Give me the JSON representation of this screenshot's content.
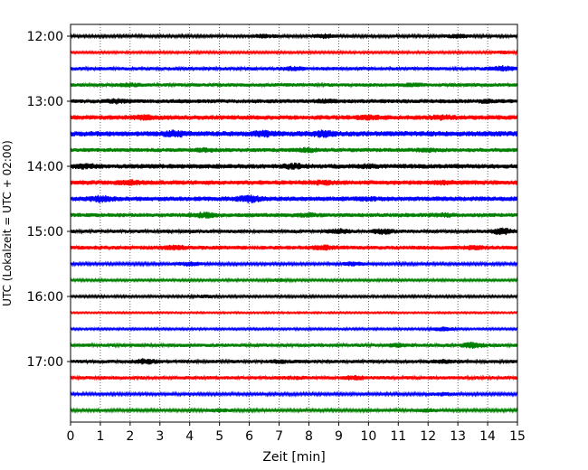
{
  "chart_data": {
    "type": "line",
    "subtype": "helicorder",
    "xlabel": "Zeit  [min]",
    "ylabel": "UTC (Lokalzeit = UTC + 02:00)",
    "xlim": [
      0,
      15
    ],
    "x_ticks": [
      "0",
      "1",
      "2",
      "3",
      "4",
      "5",
      "6",
      "7",
      "8",
      "9",
      "10",
      "11",
      "12",
      "13",
      "14",
      "15"
    ],
    "y_ticks": [
      "12:00",
      "13:00",
      "14:00",
      "15:00",
      "16:00",
      "17:00"
    ],
    "grid": "vertical dotted at each minute",
    "trace_interval_minutes": 15,
    "trace_colors": [
      "#000000",
      "#ff0000",
      "#0000ff",
      "#008000"
    ],
    "traces": [
      {
        "time": "12:00",
        "color": "#000000",
        "amplitude": 0.25,
        "events": [
          [
            6.5,
            0.45
          ],
          [
            8.5,
            0.5
          ],
          [
            13.0,
            0.45
          ]
        ]
      },
      {
        "time": "12:15",
        "color": "#ff0000",
        "amplitude": 0.2,
        "events": [
          [
            14.5,
            0.35
          ]
        ]
      },
      {
        "time": "12:30",
        "color": "#0000ff",
        "amplitude": 0.3,
        "events": [
          [
            7.5,
            0.5
          ],
          [
            14.5,
            0.6
          ]
        ]
      },
      {
        "time": "12:45",
        "color": "#008000",
        "amplitude": 0.3,
        "events": [
          [
            2.0,
            0.45
          ],
          [
            11.5,
            0.45
          ]
        ]
      },
      {
        "time": "13:00",
        "color": "#000000",
        "amplitude": 0.35,
        "events": [
          [
            1.5,
            0.55
          ],
          [
            8.5,
            0.5
          ],
          [
            14.0,
            0.45
          ]
        ]
      },
      {
        "time": "13:15",
        "color": "#ff0000",
        "amplitude": 0.4,
        "events": [
          [
            2.5,
            0.6
          ],
          [
            10.0,
            0.6
          ],
          [
            12.5,
            0.6
          ]
        ]
      },
      {
        "time": "13:30",
        "color": "#0000ff",
        "amplitude": 0.45,
        "events": [
          [
            3.5,
            0.75
          ],
          [
            6.5,
            0.7
          ],
          [
            8.5,
            0.75
          ]
        ]
      },
      {
        "time": "13:45",
        "color": "#008000",
        "amplitude": 0.35,
        "events": [
          [
            4.5,
            0.5
          ],
          [
            8.0,
            0.55
          ],
          [
            12.0,
            0.5
          ]
        ]
      },
      {
        "time": "14:00",
        "color": "#000000",
        "amplitude": 0.4,
        "events": [
          [
            0.5,
            0.6
          ],
          [
            7.5,
            0.65
          ],
          [
            10.0,
            0.55
          ]
        ]
      },
      {
        "time": "14:15",
        "color": "#ff0000",
        "amplitude": 0.4,
        "events": [
          [
            2.0,
            0.6
          ],
          [
            8.5,
            0.55
          ],
          [
            12.5,
            0.55
          ]
        ]
      },
      {
        "time": "14:30",
        "color": "#0000ff",
        "amplitude": 0.4,
        "events": [
          [
            1.0,
            0.7
          ],
          [
            6.0,
            0.8
          ],
          [
            10.0,
            0.5
          ]
        ]
      },
      {
        "time": "14:45",
        "color": "#008000",
        "amplitude": 0.35,
        "events": [
          [
            4.5,
            0.65
          ],
          [
            8.0,
            0.5
          ],
          [
            12.5,
            0.5
          ]
        ]
      },
      {
        "time": "15:00",
        "color": "#000000",
        "amplitude": 0.3,
        "events": [
          [
            9.0,
            0.55
          ],
          [
            10.5,
            0.6
          ],
          [
            14.5,
            0.7
          ]
        ]
      },
      {
        "time": "15:15",
        "color": "#ff0000",
        "amplitude": 0.35,
        "events": [
          [
            3.5,
            0.55
          ],
          [
            8.5,
            0.55
          ],
          [
            13.5,
            0.5
          ]
        ]
      },
      {
        "time": "15:30",
        "color": "#0000ff",
        "amplitude": 0.25,
        "events": [
          [
            4.0,
            0.5
          ],
          [
            9.5,
            0.45
          ]
        ]
      },
      {
        "time": "15:45",
        "color": "#008000",
        "amplitude": 0.2,
        "events": [
          [
            7.0,
            0.35
          ]
        ]
      },
      {
        "time": "16:00",
        "color": "#000000",
        "amplitude": 0.2,
        "events": [
          [
            4.5,
            0.35
          ]
        ]
      },
      {
        "time": "16:15",
        "color": "#ff0000",
        "amplitude": 0.15,
        "events": []
      },
      {
        "time": "16:30",
        "color": "#0000ff",
        "amplitude": 0.18,
        "events": [
          [
            12.5,
            0.45
          ]
        ]
      },
      {
        "time": "16:45",
        "color": "#008000",
        "amplitude": 0.3,
        "events": [
          [
            11.0,
            0.45
          ],
          [
            13.5,
            0.6
          ]
        ]
      },
      {
        "time": "17:00",
        "color": "#000000",
        "amplitude": 0.3,
        "events": [
          [
            2.5,
            0.6
          ],
          [
            7.0,
            0.45
          ],
          [
            12.5,
            0.45
          ]
        ]
      },
      {
        "time": "17:15",
        "color": "#ff0000",
        "amplitude": 0.3,
        "events": [
          [
            7.5,
            0.4
          ],
          [
            9.5,
            0.5
          ]
        ]
      },
      {
        "time": "17:30",
        "color": "#0000ff",
        "amplitude": 0.25,
        "events": [
          [
            12.5,
            0.4
          ]
        ]
      },
      {
        "time": "17:45",
        "color": "#008000",
        "amplitude": 0.25,
        "events": [
          [
            5.0,
            0.4
          ],
          [
            12.0,
            0.4
          ]
        ]
      }
    ]
  }
}
